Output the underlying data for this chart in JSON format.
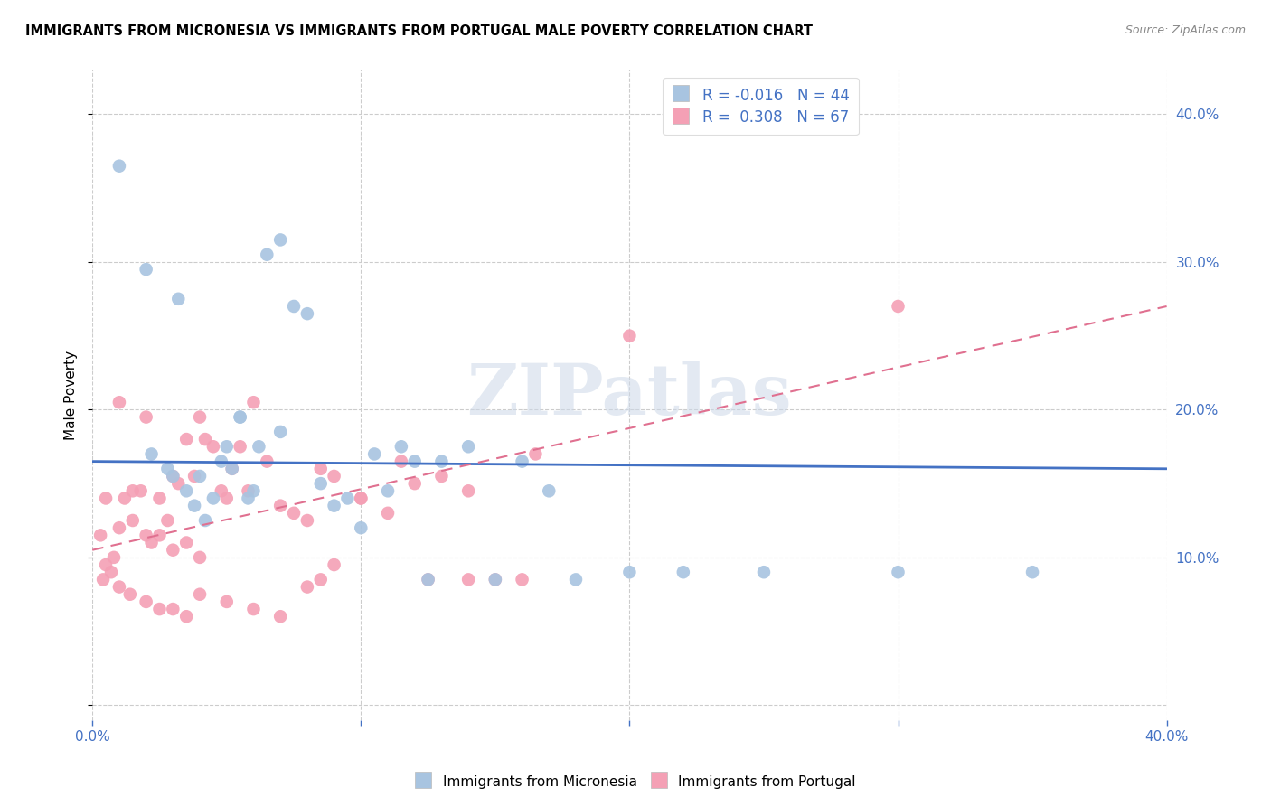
{
  "title": "IMMIGRANTS FROM MICRONESIA VS IMMIGRANTS FROM PORTUGAL MALE POVERTY CORRELATION CHART",
  "source": "Source: ZipAtlas.com",
  "ylabel": "Male Poverty",
  "ytick_vals": [
    0,
    10,
    20,
    30,
    40
  ],
  "xrange": [
    0,
    40
  ],
  "yrange": [
    -1,
    43
  ],
  "blue_R": -0.016,
  "blue_N": 44,
  "pink_R": 0.308,
  "pink_N": 67,
  "blue_color": "#a8c4e0",
  "pink_color": "#f4a0b5",
  "blue_line_color": "#4472c4",
  "pink_line_color": "#e07090",
  "blue_line_y0": 16.5,
  "blue_line_y1": 16.0,
  "pink_line_y0": 10.5,
  "pink_line_y1": 27.0,
  "blue_scatter_x": [
    1.0,
    2.2,
    2.8,
    3.0,
    3.5,
    3.8,
    4.0,
    4.2,
    4.5,
    4.8,
    5.0,
    5.2,
    5.5,
    5.8,
    6.0,
    6.2,
    6.5,
    7.0,
    7.5,
    8.0,
    8.5,
    9.0,
    9.5,
    10.0,
    10.5,
    11.0,
    11.5,
    12.0,
    12.5,
    13.0,
    14.0,
    15.0,
    16.0,
    17.0,
    18.0,
    20.0,
    22.0,
    25.0,
    30.0,
    35.0,
    2.0,
    3.2,
    5.5,
    7.0
  ],
  "blue_scatter_y": [
    36.5,
    17.0,
    16.0,
    15.5,
    14.5,
    13.5,
    15.5,
    12.5,
    14.0,
    16.5,
    17.5,
    16.0,
    19.5,
    14.0,
    14.5,
    17.5,
    30.5,
    31.5,
    27.0,
    26.5,
    15.0,
    13.5,
    14.0,
    12.0,
    17.0,
    14.5,
    17.5,
    16.5,
    8.5,
    16.5,
    17.5,
    8.5,
    16.5,
    14.5,
    8.5,
    9.0,
    9.0,
    9.0,
    9.0,
    9.0,
    29.5,
    27.5,
    19.5,
    18.5
  ],
  "pink_scatter_x": [
    0.3,
    0.5,
    0.5,
    0.8,
    1.0,
    1.0,
    1.2,
    1.5,
    1.5,
    1.8,
    2.0,
    2.0,
    2.2,
    2.5,
    2.5,
    2.8,
    3.0,
    3.0,
    3.2,
    3.5,
    3.5,
    3.8,
    4.0,
    4.0,
    4.2,
    4.5,
    4.8,
    5.0,
    5.2,
    5.5,
    5.8,
    6.0,
    6.5,
    7.0,
    7.5,
    8.0,
    8.5,
    9.0,
    10.0,
    11.0,
    12.0,
    13.0,
    14.0,
    15.0,
    16.0,
    0.4,
    0.7,
    1.0,
    1.4,
    2.0,
    2.5,
    3.0,
    3.5,
    4.0,
    5.0,
    6.0,
    7.0,
    8.0,
    8.5,
    9.0,
    10.0,
    11.5,
    12.5,
    14.0,
    16.5,
    20.0,
    30.0
  ],
  "pink_scatter_y": [
    11.5,
    9.5,
    14.0,
    10.0,
    20.5,
    12.0,
    14.0,
    12.5,
    14.5,
    14.5,
    19.5,
    11.5,
    11.0,
    11.5,
    14.0,
    12.5,
    15.5,
    10.5,
    15.0,
    18.0,
    11.0,
    15.5,
    19.5,
    10.0,
    18.0,
    17.5,
    14.5,
    14.0,
    16.0,
    17.5,
    14.5,
    20.5,
    16.5,
    13.5,
    13.0,
    12.5,
    16.0,
    15.5,
    14.0,
    13.0,
    15.0,
    15.5,
    14.5,
    8.5,
    8.5,
    8.5,
    9.0,
    8.0,
    7.5,
    7.0,
    6.5,
    6.5,
    6.0,
    7.5,
    7.0,
    6.5,
    6.0,
    8.0,
    8.5,
    9.5,
    14.0,
    16.5,
    8.5,
    8.5,
    17.0,
    25.0,
    27.0
  ],
  "watermark_text": "ZIPatlas",
  "legend_label_blue": "Immigrants from Micronesia",
  "legend_label_pink": "Immigrants from Portugal"
}
